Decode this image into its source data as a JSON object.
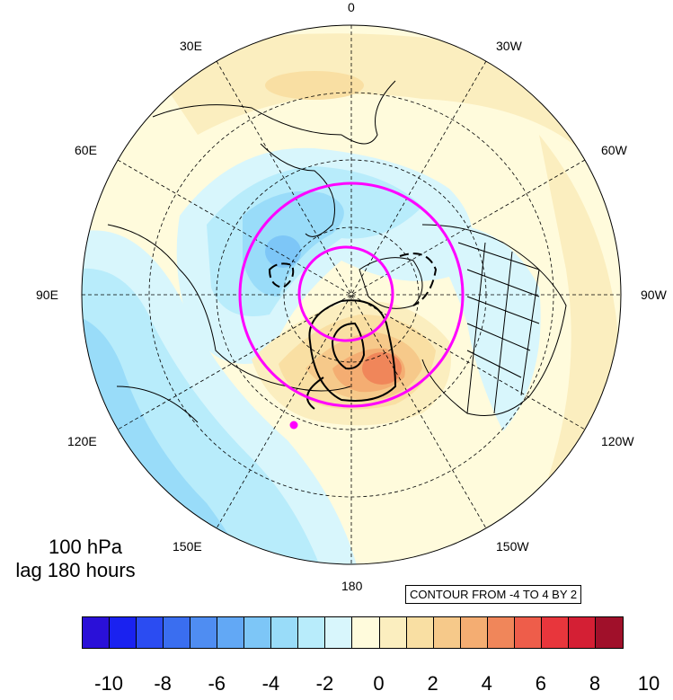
{
  "longitude_labels": [
    "0",
    "30W",
    "60W",
    "90W",
    "120W",
    "150W",
    "180",
    "150E",
    "120E",
    "90E",
    "60E",
    "30E"
  ],
  "level_label": "100 hPa",
  "lag_label": "lag 180 hours",
  "contour_info": "CONTOUR FROM -4 TO 4 BY 2",
  "colorbar": {
    "colors": [
      "#2a10d8",
      "#1a22f0",
      "#2b4cf2",
      "#3a6ef0",
      "#4f8df2",
      "#62a8f5",
      "#7dc6f7",
      "#99dcf9",
      "#b8ecfb",
      "#d8f6fc",
      "#fffbdc",
      "#fbeebf",
      "#f9dfa3",
      "#f6c98a",
      "#f4ad72",
      "#f0865a",
      "#ee5d4a",
      "#e8363c",
      "#d41f34",
      "#a0102a"
    ],
    "tick_labels": [
      "-10",
      "-8",
      "-6",
      "-4",
      "-2",
      "0",
      "2",
      "4",
      "6",
      "8",
      "10"
    ]
  },
  "marker_color": "#ff00ff"
}
